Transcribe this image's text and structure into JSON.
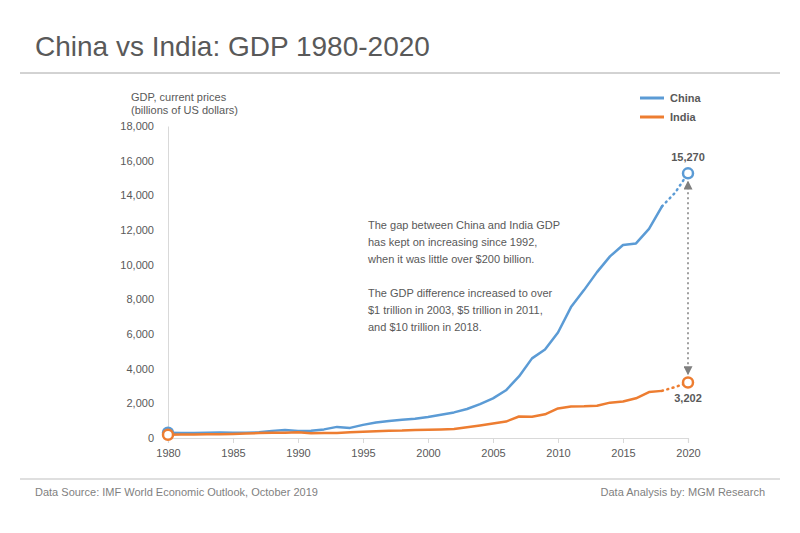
{
  "chart_data": {
    "type": "line",
    "title": "China vs India: GDP 1980-2020",
    "ylabel": [
      "GDP, current prices",
      "(billions of US dollars)"
    ],
    "annotations": [
      [
        "The gap between China and India GDP",
        "has kept on increasing since 1992,",
        "when it was little over $200 billion."
      ],
      [
        "The GDP difference increased to over",
        "$1 trillion in 2003, $5 trillion in 2011,",
        "and $10 trillion in 2018."
      ]
    ],
    "source": "Data Source: IMF World Economic Outlook, October 2019",
    "credit": "Data Analysis by: MGM Research",
    "x": [
      1980,
      1981,
      1982,
      1983,
      1984,
      1985,
      1986,
      1987,
      1988,
      1989,
      1990,
      1991,
      1992,
      1993,
      1994,
      1995,
      1996,
      1997,
      1998,
      1999,
      2000,
      2001,
      2002,
      2003,
      2004,
      2005,
      2006,
      2007,
      2008,
      2009,
      2010,
      2011,
      2012,
      2013,
      2014,
      2015,
      2016,
      2017,
      2018,
      2019,
      2020
    ],
    "xlim": [
      1980,
      2020
    ],
    "xticks": [
      1980,
      1985,
      1990,
      1995,
      2000,
      2005,
      2010,
      2015,
      2020
    ],
    "ylim": [
      0,
      18000
    ],
    "yticks": [
      0,
      {
        "value": 2000,
        "label": "2,000"
      },
      {
        "value": 4000,
        "label": "4,000"
      },
      {
        "value": 6000,
        "label": "6,000"
      },
      {
        "value": 8000,
        "label": "8,000"
      },
      {
        "value": 10000,
        "label": "10,000"
      },
      {
        "value": 12000,
        "label": "12,000"
      },
      {
        "value": 14000,
        "label": "14,000"
      },
      {
        "value": 16000,
        "label": "16,000"
      },
      {
        "value": 18000,
        "label": "18,000"
      }
    ],
    "grid": false,
    "legend": "top-right",
    "series": [
      {
        "name": "China",
        "color": "#5b9bd5",
        "line_style": "solid",
        "values": [
          305,
          289,
          284,
          305,
          314,
          310,
          301,
          327,
          411,
          461,
          399,
          416,
          497,
          641,
          583,
          757,
          893,
          987,
          1049,
          1106,
          1216,
          1345,
          1477,
          1671,
          1955,
          2286,
          2752,
          3550,
          4594,
          5102,
          6088,
          7552,
          8532,
          9570,
          10476,
          11138,
          11227,
          12062,
          13368,
          null,
          null
        ]
      },
      {
        "color": "#5b9bd5",
        "line_style": "dotted",
        "values": [
          null,
          null,
          null,
          null,
          null,
          null,
          null,
          null,
          null,
          null,
          null,
          null,
          null,
          null,
          null,
          null,
          null,
          null,
          null,
          null,
          null,
          null,
          null,
          null,
          null,
          null,
          null,
          null,
          null,
          null,
          null,
          null,
          null,
          null,
          null,
          null,
          null,
          null,
          13368,
          14140,
          15270
        ],
        "value_labels": [
          null,
          null,
          null,
          null,
          null,
          null,
          null,
          null,
          null,
          null,
          null,
          null,
          null,
          null,
          null,
          null,
          null,
          null,
          null,
          null,
          null,
          null,
          null,
          null,
          null,
          null,
          null,
          null,
          null,
          null,
          null,
          null,
          null,
          null,
          null,
          null,
          null,
          null,
          null,
          null,
          "15,270"
        ]
      },
      {
        "name": "India",
        "color": "#ed7d31",
        "line_style": "solid",
        "values": [
          186,
          196,
          204,
          222,
          215,
          236,
          253,
          284,
          300,
          301,
          327,
          275,
          293,
          284,
          333,
          367,
          388,
          421,
          428,
          467,
          477,
          494,
          524,
          618,
          722,
          834,
          949,
          1238,
          1224,
          1365,
          1708,
          1823,
          1828,
          1857,
          2039,
          2104,
          2290,
          2652,
          2719,
          null,
          null
        ]
      },
      {
        "color": "#ed7d31",
        "line_style": "dotted",
        "values": [
          null,
          null,
          null,
          null,
          null,
          null,
          null,
          null,
          null,
          null,
          null,
          null,
          null,
          null,
          null,
          null,
          null,
          null,
          null,
          null,
          null,
          null,
          null,
          null,
          null,
          null,
          null,
          null,
          null,
          null,
          null,
          null,
          null,
          null,
          null,
          null,
          null,
          null,
          2719,
          2936,
          3202
        ],
        "value_labels": [
          null,
          null,
          null,
          null,
          null,
          null,
          null,
          null,
          null,
          null,
          null,
          null,
          null,
          null,
          null,
          null,
          null,
          null,
          null,
          null,
          null,
          null,
          null,
          null,
          null,
          null,
          null,
          null,
          null,
          null,
          null,
          null,
          null,
          null,
          null,
          null,
          null,
          null,
          null,
          null,
          "3,202"
        ]
      }
    ]
  }
}
